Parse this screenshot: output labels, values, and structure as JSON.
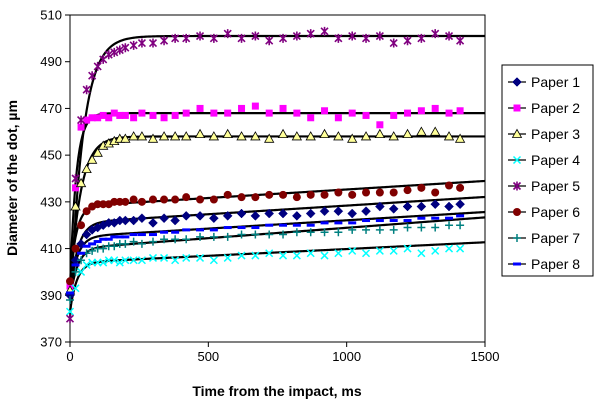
{
  "chart_data": {
    "type": "scatter",
    "title": "",
    "xlabel": "Time from the impact, ms",
    "ylabel": "Diameter of the dot, µm",
    "xlim": [
      0,
      1500
    ],
    "ylim": [
      370,
      510
    ],
    "x_ticks": [
      "0",
      "500",
      "1000",
      "1500"
    ],
    "y_ticks": [
      "370",
      "390",
      "410",
      "430",
      "450",
      "470",
      "490",
      "510"
    ],
    "x_tick_values": [
      0,
      500,
      1000,
      1500
    ],
    "y_tick_values": [
      370,
      390,
      410,
      430,
      450,
      470,
      490,
      510
    ],
    "grid": false,
    "legend": "right",
    "series": [
      {
        "name": "Paper 1",
        "color": "#000080",
        "marker": "diamond",
        "x": [
          0,
          20,
          40,
          60,
          80,
          100,
          120,
          140,
          160,
          180,
          200,
          230,
          260,
          300,
          340,
          380,
          420,
          470,
          520,
          570,
          620,
          670,
          720,
          770,
          820,
          870,
          920,
          970,
          1020,
          1070,
          1120,
          1170,
          1220,
          1270,
          1320,
          1370,
          1410
        ],
        "y": [
          390,
          405,
          412,
          416,
          418,
          419,
          420,
          421,
          421,
          422,
          422,
          422,
          423,
          421,
          423,
          422,
          424,
          424,
          423,
          424,
          425,
          424,
          425,
          425,
          424,
          425,
          426,
          426,
          425,
          426,
          428,
          427,
          428,
          428,
          429,
          428,
          429
        ]
      },
      {
        "name": "Paper 2",
        "color": "#FF00FF",
        "marker": "square",
        "x": [
          0,
          20,
          40,
          60,
          80,
          100,
          120,
          140,
          160,
          180,
          200,
          230,
          260,
          300,
          340,
          380,
          420,
          470,
          520,
          570,
          620,
          670,
          720,
          770,
          820,
          870,
          920,
          970,
          1020,
          1070,
          1120,
          1170,
          1220,
          1270,
          1320,
          1370,
          1410
        ],
        "y": [
          394,
          436,
          462,
          465,
          466,
          466,
          467,
          466,
          468,
          467,
          467,
          466,
          468,
          467,
          466,
          467,
          468,
          470,
          468,
          468,
          470,
          471,
          468,
          470,
          468,
          466,
          469,
          466,
          468,
          467,
          463,
          467,
          468,
          469,
          470,
          468,
          469
        ]
      },
      {
        "name": "Paper 3",
        "color": "#FFFF99",
        "marker": "triangle",
        "x": [
          0,
          20,
          40,
          60,
          80,
          100,
          120,
          140,
          160,
          180,
          200,
          230,
          260,
          300,
          340,
          380,
          420,
          470,
          520,
          570,
          620,
          670,
          720,
          770,
          820,
          870,
          920,
          970,
          1020,
          1070,
          1120,
          1170,
          1220,
          1270,
          1320,
          1370,
          1410
        ],
        "y": [
          392,
          428,
          438,
          444,
          448,
          451,
          454,
          455,
          456,
          457,
          457,
          458,
          458,
          457,
          458,
          458,
          458,
          459,
          458,
          459,
          458,
          458,
          457,
          459,
          458,
          458,
          459,
          458,
          457,
          458,
          459,
          458,
          459,
          460,
          460,
          458,
          457
        ]
      },
      {
        "name": "Paper 4",
        "color": "#00FFFF",
        "marker": "x",
        "x": [
          0,
          20,
          40,
          60,
          80,
          100,
          120,
          140,
          160,
          180,
          200,
          230,
          260,
          300,
          340,
          380,
          420,
          470,
          520,
          570,
          620,
          670,
          720,
          770,
          820,
          870,
          920,
          970,
          1020,
          1070,
          1120,
          1170,
          1220,
          1270,
          1320,
          1370,
          1410
        ],
        "y": [
          383,
          393,
          400,
          403,
          404,
          404,
          404,
          405,
          405,
          404,
          405,
          405,
          405,
          406,
          406,
          405,
          406,
          406,
          405,
          406,
          407,
          407,
          408,
          407,
          407,
          408,
          407,
          408,
          409,
          408,
          409,
          409,
          410,
          408,
          409,
          410,
          410
        ]
      },
      {
        "name": "Paper 5",
        "color": "#800080",
        "marker": "star",
        "x": [
          0,
          20,
          40,
          60,
          80,
          100,
          120,
          140,
          160,
          180,
          200,
          230,
          260,
          300,
          340,
          380,
          420,
          470,
          520,
          570,
          620,
          670,
          720,
          770,
          820,
          870,
          920,
          970,
          1020,
          1070,
          1120,
          1170,
          1220,
          1270,
          1320,
          1370,
          1410
        ],
        "y": [
          380,
          440,
          465,
          478,
          484,
          488,
          491,
          493,
          494,
          495,
          496,
          497,
          498,
          498,
          499,
          500,
          500,
          501,
          500,
          502,
          500,
          501,
          499,
          500,
          501,
          502,
          503,
          500,
          501,
          500,
          501,
          498,
          499,
          500,
          502,
          501,
          499
        ]
      },
      {
        "name": "Paper 6",
        "color": "#800000",
        "marker": "circle",
        "x": [
          0,
          20,
          40,
          60,
          80,
          100,
          120,
          140,
          160,
          180,
          200,
          230,
          260,
          300,
          340,
          380,
          420,
          470,
          520,
          570,
          620,
          670,
          720,
          770,
          820,
          870,
          920,
          970,
          1020,
          1070,
          1120,
          1170,
          1220,
          1270,
          1320,
          1370,
          1410
        ],
        "y": [
          396,
          410,
          420,
          426,
          428,
          429,
          429,
          429,
          430,
          430,
          430,
          431,
          430,
          431,
          431,
          431,
          432,
          431,
          431,
          433,
          432,
          432,
          433,
          433,
          432,
          433,
          433,
          434,
          433,
          434,
          434,
          434,
          435,
          436,
          434,
          437,
          436
        ]
      },
      {
        "name": "Paper 7",
        "color": "#008080",
        "marker": "plus",
        "x": [
          0,
          20,
          40,
          60,
          80,
          100,
          120,
          140,
          160,
          180,
          200,
          230,
          260,
          300,
          340,
          380,
          420,
          470,
          520,
          570,
          620,
          670,
          720,
          770,
          820,
          870,
          920,
          970,
          1020,
          1070,
          1120,
          1170,
          1220,
          1270,
          1320,
          1370,
          1410
        ],
        "y": [
          388,
          400,
          405,
          408,
          409,
          410,
          410,
          411,
          411,
          412,
          412,
          413,
          412,
          413,
          414,
          414,
          414,
          415,
          415,
          415,
          416,
          416,
          416,
          416,
          417,
          417,
          417,
          417,
          418,
          418,
          418,
          418,
          419,
          419,
          419,
          420,
          420
        ]
      },
      {
        "name": "Paper 8",
        "color": "#0000FF",
        "marker": "dash",
        "x": [
          0,
          20,
          40,
          60,
          80,
          100,
          120,
          140,
          160,
          180,
          200,
          230,
          260,
          300,
          340,
          380,
          420,
          470,
          520,
          570,
          620,
          670,
          720,
          770,
          820,
          870,
          920,
          970,
          1020,
          1070,
          1120,
          1170,
          1220,
          1270,
          1320,
          1370,
          1410
        ],
        "y": [
          391,
          403,
          408,
          411,
          412,
          413,
          414,
          414,
          415,
          415,
          415,
          416,
          416,
          416,
          417,
          417,
          418,
          418,
          418,
          419,
          419,
          419,
          420,
          420,
          420,
          420,
          421,
          421,
          421,
          422,
          422,
          422,
          422,
          423,
          423,
          423,
          424
        ]
      }
    ],
    "fit_curves": [
      {
        "t0": 390,
        "A": 31,
        "tau": 28,
        "slope": 0.0074
      },
      {
        "t0": 393,
        "A": 75,
        "tau": 22,
        "slope": 0.0
      },
      {
        "t0": 392,
        "A": 66,
        "tau": 38,
        "slope": 0.0
      },
      {
        "t0": 383,
        "A": 21,
        "tau": 25,
        "slope": 0.0058
      },
      {
        "t0": 380,
        "A": 121,
        "tau": 45,
        "slope": 0.0
      },
      {
        "t0": 395,
        "A": 33,
        "tau": 22,
        "slope": 0.0073
      },
      {
        "t0": 388,
        "A": 22,
        "tau": 26,
        "slope": 0.0089
      },
      {
        "t0": 391,
        "A": 24,
        "tau": 26,
        "slope": 0.0071
      }
    ]
  }
}
